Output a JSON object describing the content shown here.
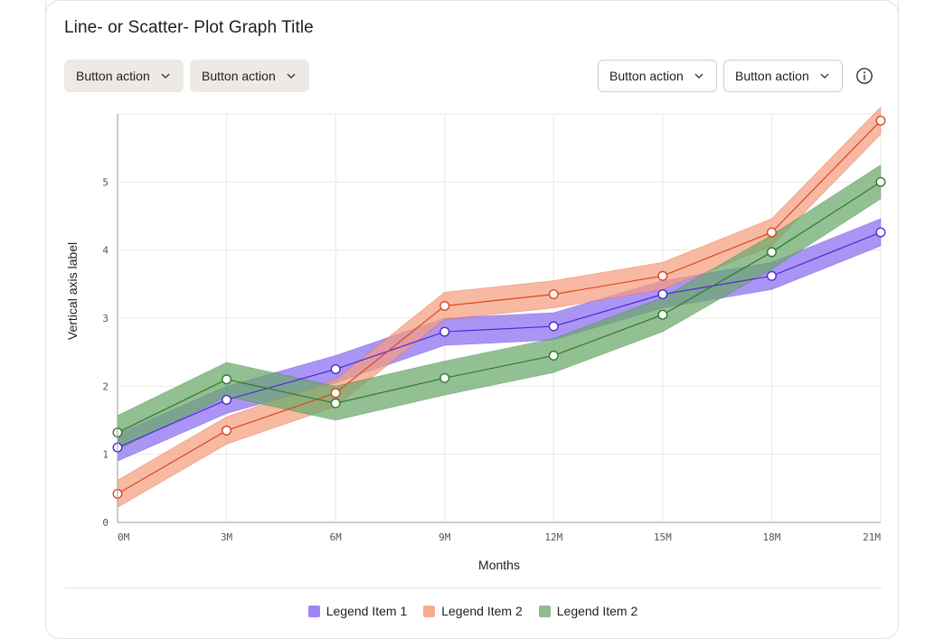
{
  "card": {
    "title": "Line- or Scatter- Plot Graph Title",
    "left_buttons": [
      {
        "label": "Button action"
      },
      {
        "label": "Button action"
      }
    ],
    "right_buttons": [
      {
        "label": "Button action"
      },
      {
        "label": "Button action"
      }
    ],
    "info_icon": "info-icon"
  },
  "chart_data": {
    "type": "line",
    "title": "Line- or Scatter- Plot Graph Title",
    "xlabel": "Months",
    "ylabel": "Vertical axis label",
    "x": [
      0,
      3,
      6,
      9,
      12,
      15,
      18,
      21
    ],
    "x_tick_labels": [
      "0M",
      "3M",
      "6M",
      "9M",
      "12M",
      "15M",
      "18M",
      "21M"
    ],
    "y_ticks": [
      0,
      1,
      2,
      3,
      4,
      5
    ],
    "xlim": [
      0,
      21
    ],
    "ylim": [
      0,
      6
    ],
    "grid": true,
    "legend_position": "bottom-center",
    "series": [
      {
        "name": "Legend Item 1",
        "color": "#4b2bd6",
        "band_color": "#8b6cf0",
        "values": [
          1.1,
          1.8,
          2.25,
          2.8,
          2.88,
          3.35,
          3.62,
          4.26
        ],
        "band": 0.2
      },
      {
        "name": "Legend Item 2",
        "color": "#d9481e",
        "band_color": "#f59e80",
        "values": [
          0.42,
          1.35,
          1.9,
          3.18,
          3.35,
          3.62,
          4.26,
          5.9
        ],
        "band": 0.2
      },
      {
        "name": "Legend Item 2",
        "color": "#2f7a2f",
        "band_color": "#6aa86a",
        "values": [
          1.32,
          2.1,
          1.75,
          2.12,
          2.45,
          3.05,
          3.97,
          5.0
        ],
        "band": 0.25
      }
    ]
  }
}
